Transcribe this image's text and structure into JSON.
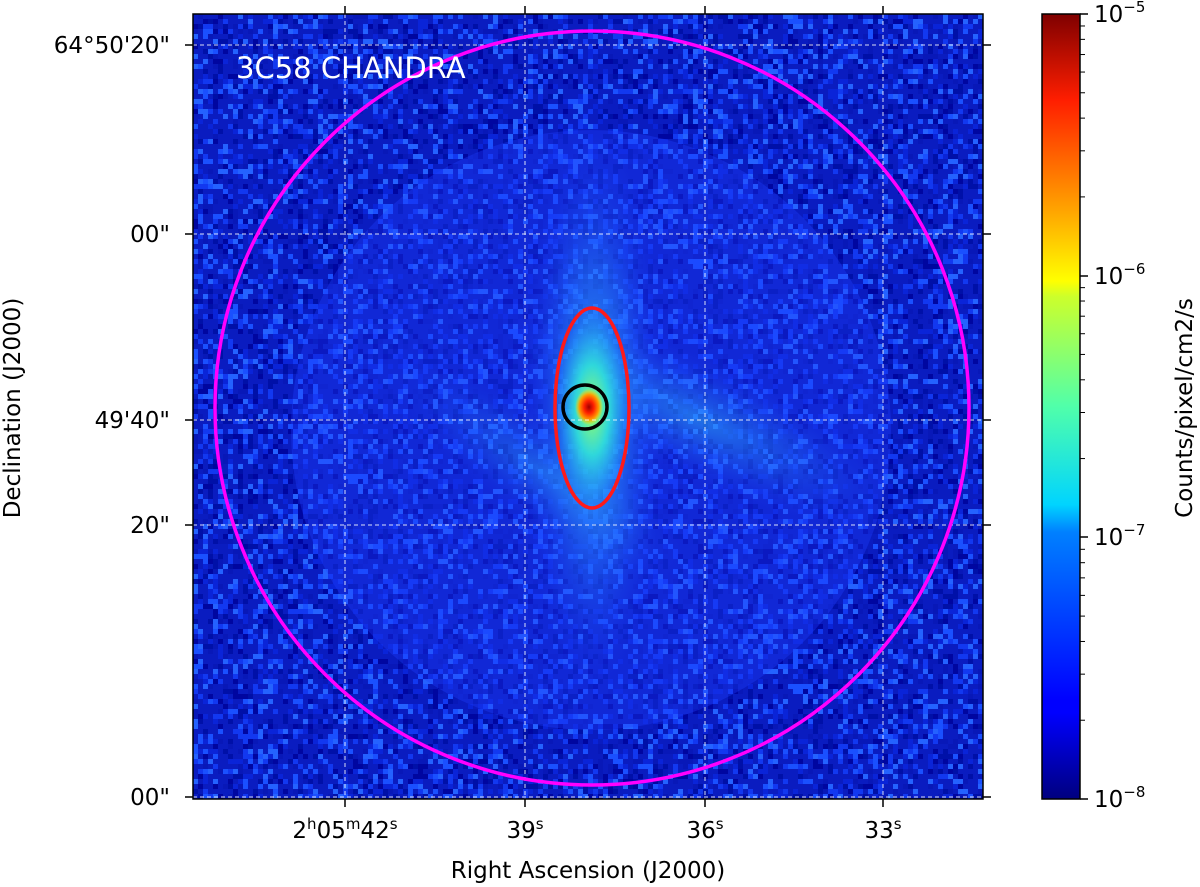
{
  "figure": {
    "title": "3C58 CHANDRA",
    "xlabel": "Right Ascension (J2000)",
    "ylabel": "Declination (J2000)",
    "colorbar_label": "Counts/pixel/cm2/s",
    "colormap": "jet",
    "colors": {
      "outer_circle": "#ff00ff",
      "ellipse": "#ff1a1a",
      "inner_circle": "#000000",
      "title_text": "#ffffff",
      "grid": "#ffffff"
    }
  },
  "axes": {
    "ra_ticks": [
      {
        "hm": "2h05m",
        "h": "h",
        "m": "m",
        "pre1": "2",
        "pre2": "05",
        "sec": "42",
        "s": "s"
      },
      {
        "sec": "39",
        "s": "s"
      },
      {
        "sec": "36",
        "s": "s"
      },
      {
        "sec": "33",
        "s": "s"
      }
    ],
    "dec_ticks": [
      {
        "label": "64°50'20\""
      },
      {
        "label": "00\""
      },
      {
        "label": "49'40\""
      },
      {
        "label": "20\""
      },
      {
        "label": "00\""
      }
    ]
  },
  "colorbar": {
    "scale": "log",
    "min": 1e-08,
    "max": 1e-05,
    "ticks": [
      {
        "base": "10",
        "exp": "−5"
      },
      {
        "base": "10",
        "exp": "−6"
      },
      {
        "base": "10",
        "exp": "−7"
      },
      {
        "base": "10",
        "exp": "−8"
      }
    ]
  }
}
